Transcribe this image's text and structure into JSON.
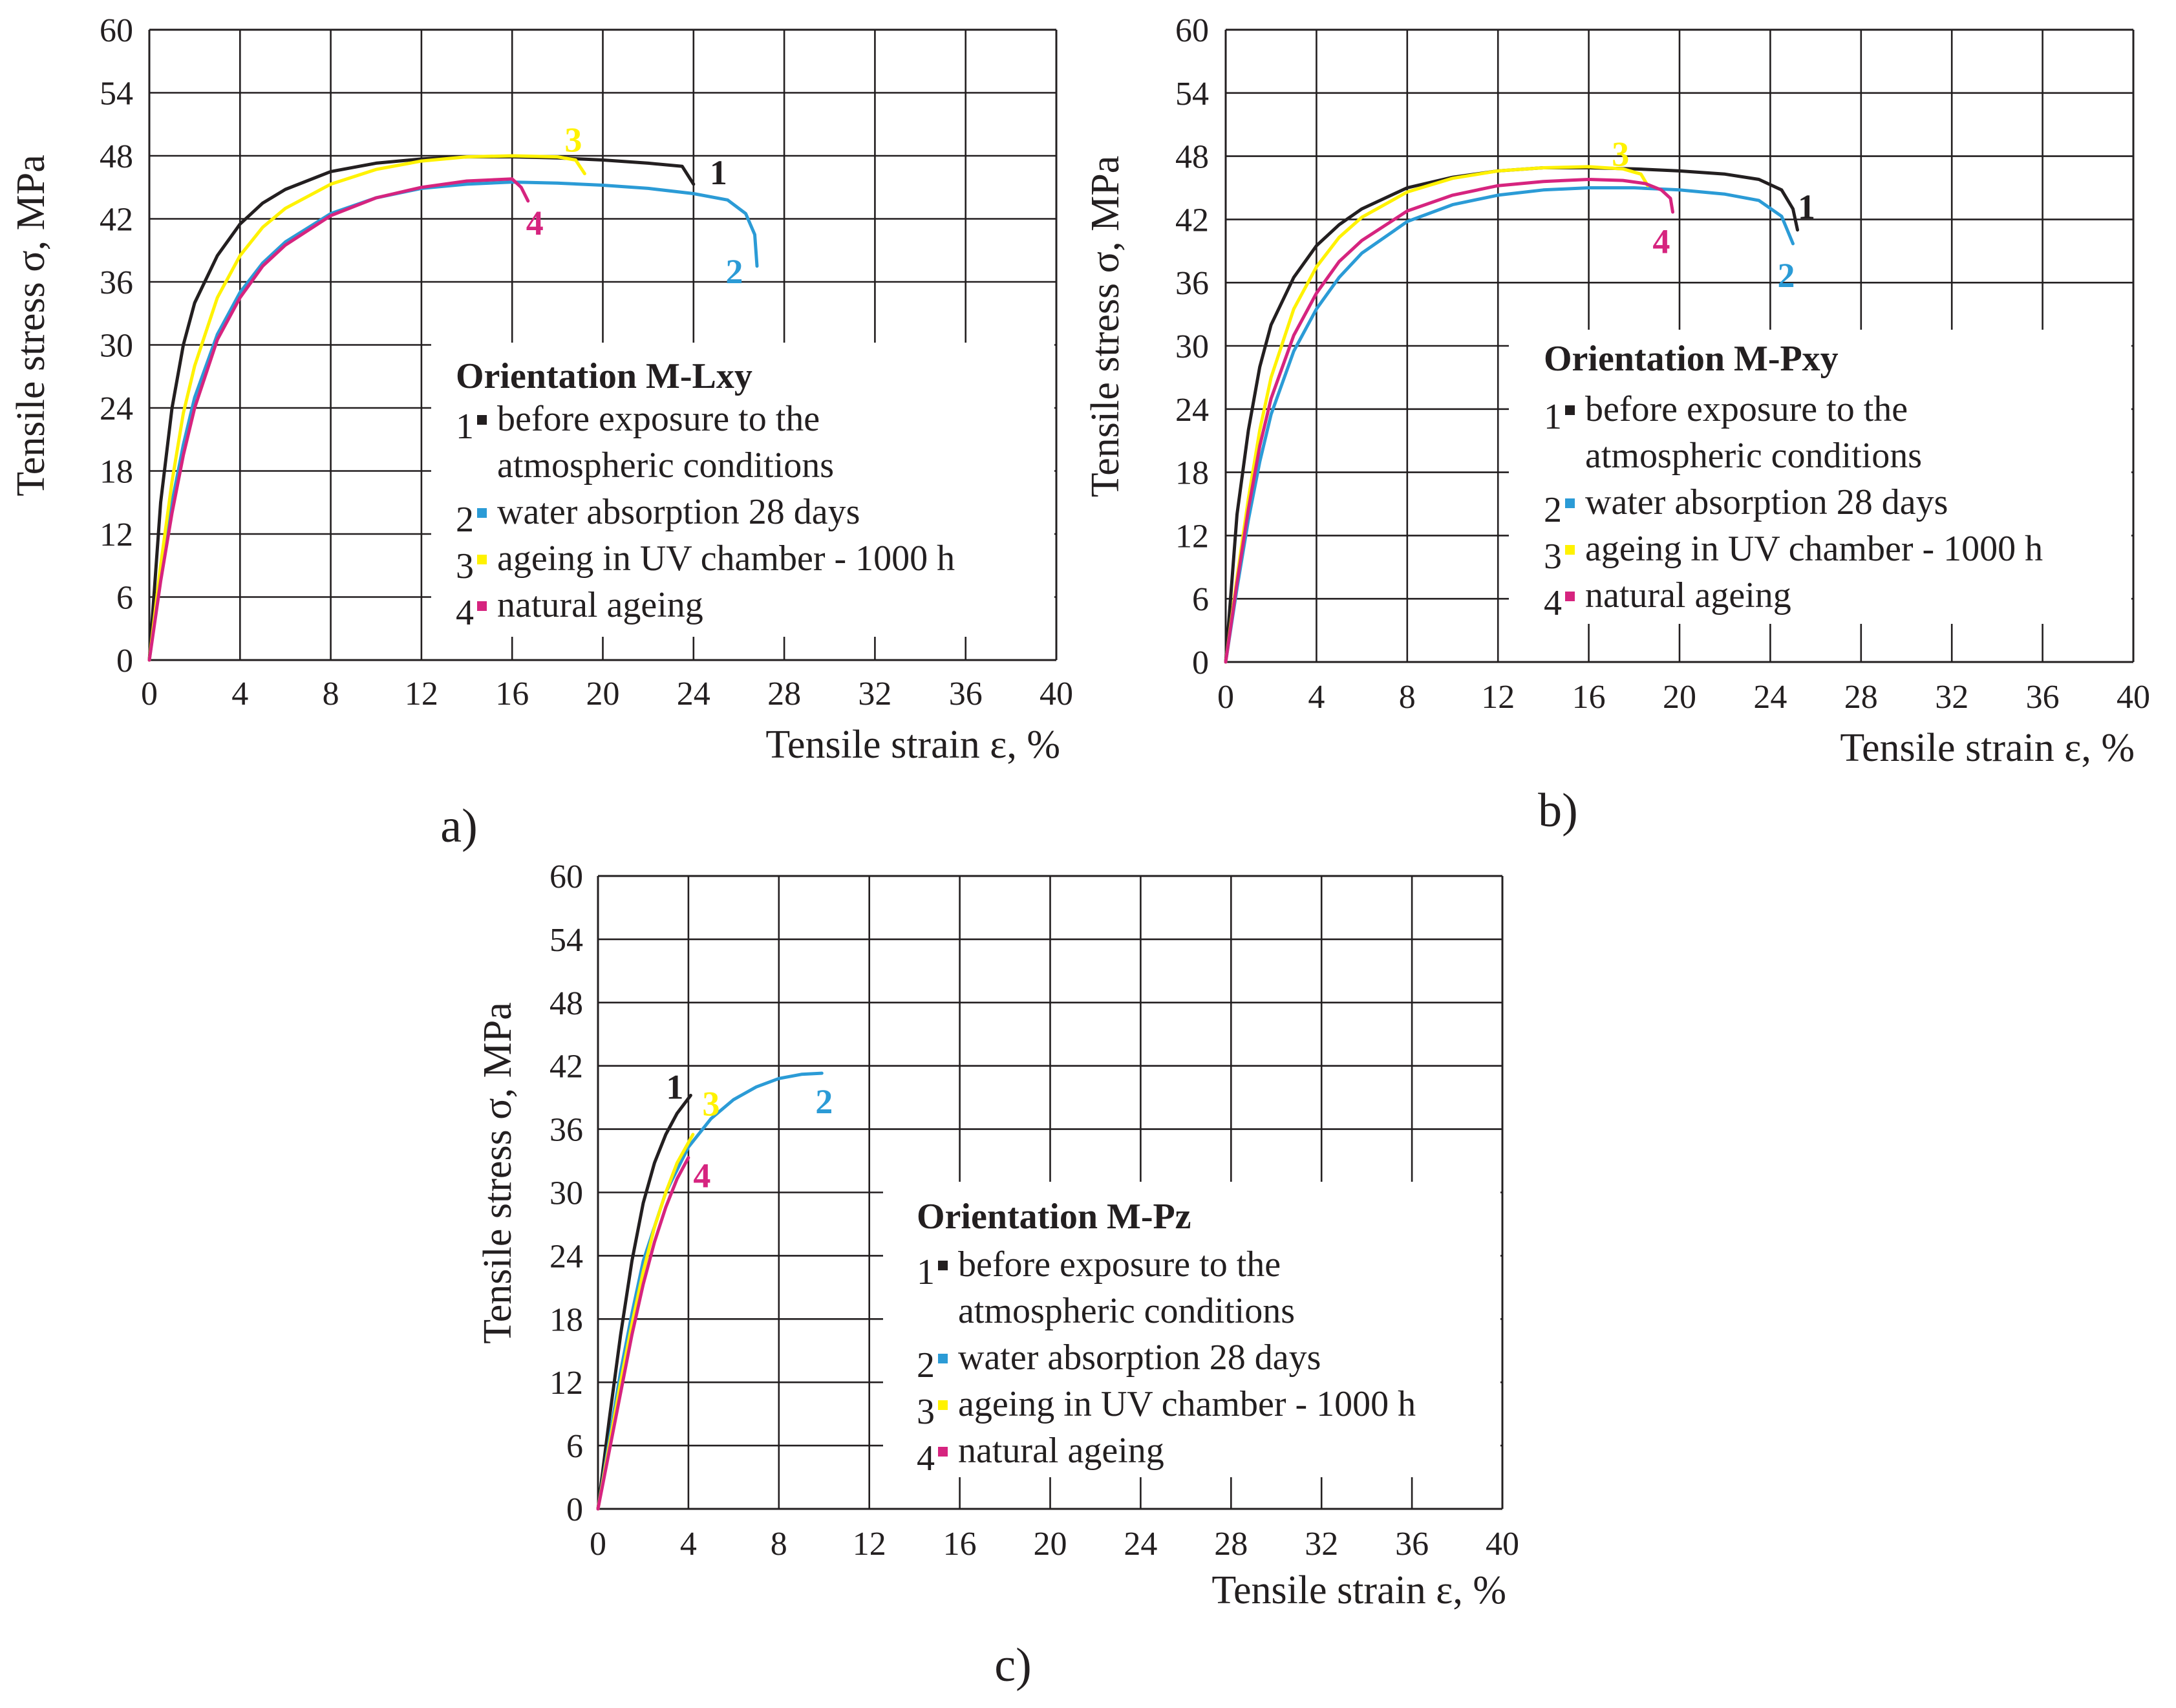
{
  "colors": {
    "black": "#231f20",
    "blue": "#2b9bd6",
    "yellow": "#fff200",
    "magenta": "#d6247f"
  },
  "chart_data": [
    {
      "type": "line",
      "panel_label": "a)",
      "legend_title": "Orientation M-Lxy",
      "xlabel": "Tensile strain ε, %",
      "ylabel": "Tensile stress σ, MPa",
      "xlim": [
        0,
        40
      ],
      "ylim": [
        0,
        60
      ],
      "xticks": [
        "0",
        "4",
        "8",
        "12",
        "16",
        "20",
        "24",
        "28",
        "32",
        "36",
        "40"
      ],
      "yticks": [
        "0",
        "6",
        "12",
        "18",
        "24",
        "30",
        "36",
        "42",
        "48",
        "54",
        "60"
      ],
      "grid": true,
      "legend_position": "center-right",
      "series": [
        {
          "id": "1",
          "name": "before exposure to the atmospheric conditions",
          "name_lines": [
            "before exposure to the",
            "atmospheric conditions"
          ],
          "color": "black",
          "x": [
            0,
            0.5,
            1,
            1.5,
            2,
            3,
            4,
            5,
            6,
            8,
            10,
            12,
            14,
            16,
            18,
            20,
            22,
            23.5,
            24
          ],
          "y": [
            0,
            15,
            24,
            30,
            34,
            38.5,
            41.5,
            43.5,
            44.8,
            46.5,
            47.3,
            47.7,
            47.9,
            47.9,
            47.8,
            47.6,
            47.3,
            47.0,
            45.3
          ],
          "label_at": [
            25.1,
            46.4
          ]
        },
        {
          "id": "2",
          "name": "water absorption 28 days",
          "name_lines": [
            "water absorption 28 days"
          ],
          "color": "blue",
          "x": [
            0,
            0.5,
            1,
            1.5,
            2,
            3,
            4,
            5,
            6,
            8,
            10,
            12,
            14,
            16,
            18,
            20,
            22,
            24,
            25.5,
            26.3,
            26.7,
            26.8
          ],
          "y": [
            0,
            8,
            15,
            20.5,
            25,
            31,
            35,
            37.8,
            39.8,
            42.5,
            44,
            44.9,
            45.3,
            45.5,
            45.4,
            45.2,
            44.9,
            44.4,
            43.8,
            42.5,
            40.5,
            37.5
          ],
          "label_at": [
            25.8,
            37.0
          ]
        },
        {
          "id": "3",
          "name": "ageing in UV chamber - 1000 h",
          "name_lines": [
            "ageing in UV chamber - 1000 h"
          ],
          "color": "yellow",
          "x": [
            0,
            0.5,
            1,
            1.5,
            2,
            3,
            4,
            5,
            6,
            8,
            10,
            12,
            14,
            16,
            18,
            18.8,
            19.2
          ],
          "y": [
            0,
            9,
            17,
            23.5,
            28,
            34.5,
            38.5,
            41.2,
            43,
            45.3,
            46.7,
            47.5,
            47.9,
            48.0,
            47.9,
            47.6,
            46.3
          ],
          "label_at": [
            18.7,
            49.5
          ]
        },
        {
          "id": "4",
          "name": "natural ageing",
          "name_lines": [
            "natural ageing"
          ],
          "color": "magenta",
          "x": [
            0,
            0.5,
            1,
            1.5,
            2,
            3,
            4,
            5,
            6,
            8,
            10,
            12,
            14,
            16,
            16.4,
            16.7
          ],
          "y": [
            0,
            7.5,
            14,
            19.5,
            24,
            30.5,
            34.5,
            37.5,
            39.5,
            42.3,
            44,
            45,
            45.6,
            45.8,
            45.0,
            43.7
          ],
          "label_at": [
            17.0,
            41.6
          ]
        }
      ]
    },
    {
      "type": "line",
      "panel_label": "b)",
      "legend_title": "Orientation M-Pxy",
      "xlabel": "Tensile strain ε, %",
      "ylabel": "Tensile stress σ, MPa",
      "xlim": [
        0,
        40
      ],
      "ylim": [
        0,
        60
      ],
      "xticks": [
        "0",
        "4",
        "8",
        "12",
        "16",
        "20",
        "24",
        "28",
        "32",
        "36",
        "40"
      ],
      "yticks": [
        "0",
        "6",
        "12",
        "18",
        "24",
        "30",
        "36",
        "42",
        "48",
        "54",
        "60"
      ],
      "grid": true,
      "legend_position": "center-right",
      "series": [
        {
          "id": "1",
          "name": "before exposure to the atmospheric conditions",
          "name_lines": [
            "before exposure to the",
            "atmospheric conditions"
          ],
          "color": "black",
          "x": [
            0,
            0.5,
            1,
            1.5,
            2,
            3,
            4,
            5,
            6,
            8,
            10,
            12,
            14,
            16,
            18,
            20,
            22,
            23.5,
            24.5,
            25.0,
            25.2
          ],
          "y": [
            0,
            14,
            22,
            28,
            32,
            36.5,
            39.5,
            41.5,
            43,
            45,
            46,
            46.6,
            46.9,
            46.9,
            46.8,
            46.6,
            46.3,
            45.8,
            44.8,
            43.0,
            41.0
          ],
          "label_at": [
            25.6,
            43.2
          ]
        },
        {
          "id": "2",
          "name": "water absorption 28 days",
          "name_lines": [
            "water absorption 28 days"
          ],
          "color": "blue",
          "x": [
            0,
            0.5,
            1,
            1.5,
            2,
            3,
            4,
            5,
            6,
            8,
            10,
            12,
            14,
            16,
            18,
            20,
            22,
            23.5,
            24.5,
            25.0
          ],
          "y": [
            0,
            7,
            13.5,
            19,
            23.5,
            29.5,
            33.5,
            36.5,
            38.8,
            41.8,
            43.4,
            44.3,
            44.8,
            45.0,
            45.0,
            44.8,
            44.4,
            43.8,
            42.3,
            39.7
          ],
          "label_at": [
            24.7,
            36.7
          ]
        },
        {
          "id": "3",
          "name": "ageing in UV chamber - 1000 h",
          "name_lines": [
            "ageing in UV chamber - 1000 h"
          ],
          "color": "yellow",
          "x": [
            0,
            0.5,
            1,
            1.5,
            2,
            3,
            4,
            5,
            6,
            8,
            10,
            12,
            14,
            16,
            17.5,
            18.3,
            18.6
          ],
          "y": [
            0,
            8,
            15.5,
            22,
            27,
            33.5,
            37.5,
            40.3,
            42.2,
            44.6,
            45.9,
            46.6,
            46.9,
            47.0,
            46.8,
            46.3,
            45.2
          ],
          "label_at": [
            17.4,
            48.2
          ]
        },
        {
          "id": "4",
          "name": "natural ageing",
          "name_lines": [
            "natural ageing"
          ],
          "color": "magenta",
          "x": [
            0,
            0.5,
            1,
            1.5,
            2,
            3,
            4,
            5,
            6,
            8,
            10,
            12,
            14,
            16,
            17.5,
            18.5,
            19.2,
            19.6,
            19.7
          ],
          "y": [
            0,
            7.5,
            14.5,
            20.5,
            25,
            31,
            35,
            38,
            40,
            42.8,
            44.3,
            45.2,
            45.6,
            45.8,
            45.7,
            45.4,
            44.8,
            44.0,
            42.7
          ],
          "label_at": [
            19.2,
            39.9
          ]
        }
      ]
    },
    {
      "type": "line",
      "panel_label": "c)",
      "legend_title": "Orientation M-Pz",
      "xlabel": "Tensile strain ε, %",
      "ylabel": "Tensile stress σ, MPa",
      "xlim": [
        0,
        40
      ],
      "ylim": [
        0,
        60
      ],
      "xticks": [
        "0",
        "4",
        "8",
        "12",
        "16",
        "20",
        "24",
        "28",
        "32",
        "36",
        "40"
      ],
      "yticks": [
        "0",
        "6",
        "12",
        "18",
        "24",
        "30",
        "36",
        "42",
        "48",
        "54",
        "60"
      ],
      "grid": true,
      "legend_position": "center-right",
      "series": [
        {
          "id": "1",
          "name": "before exposure to the atmospheric conditions",
          "name_lines": [
            "before exposure to the",
            "atmospheric conditions"
          ],
          "color": "black",
          "x": [
            0,
            0.5,
            1,
            1.5,
            2,
            2.5,
            3,
            3.5,
            4.1
          ],
          "y": [
            0,
            8.5,
            16.5,
            23.5,
            29,
            32.8,
            35.5,
            37.5,
            39.2
          ],
          "label_at": [
            3.4,
            40.0
          ]
        },
        {
          "id": "2",
          "name": "water absorption 28 days",
          "name_lines": [
            "water absorption 28 days"
          ],
          "color": "blue",
          "x": [
            0,
            0.5,
            1,
            1.5,
            2,
            3,
            4,
            5,
            6,
            7,
            8,
            9,
            9.9
          ],
          "y": [
            0,
            6.5,
            13,
            18.5,
            23.5,
            30,
            34.3,
            37,
            38.8,
            40,
            40.8,
            41.2,
            41.3
          ],
          "label_at": [
            10.0,
            38.6
          ]
        },
        {
          "id": "3",
          "name": "ageing in UV chamber - 1000 h",
          "name_lines": [
            "ageing in UV chamber - 1000 h"
          ],
          "color": "yellow",
          "x": [
            0,
            0.5,
            1,
            1.5,
            2,
            2.5,
            3,
            3.5,
            4.2
          ],
          "y": [
            0,
            6,
            12,
            17.5,
            22.5,
            26.7,
            30,
            32.8,
            35.5
          ],
          "label_at": [
            5.0,
            38.4
          ]
        },
        {
          "id": "4",
          "name": "natural ageing",
          "name_lines": [
            "natural ageing"
          ],
          "color": "magenta",
          "x": [
            0,
            0.5,
            1,
            1.5,
            2,
            2.5,
            3,
            3.5,
            4.0
          ],
          "y": [
            0,
            5.5,
            11,
            16.5,
            21.3,
            25.3,
            28.6,
            31.3,
            33.3
          ],
          "label_at": [
            4.6,
            31.6
          ]
        }
      ]
    }
  ]
}
